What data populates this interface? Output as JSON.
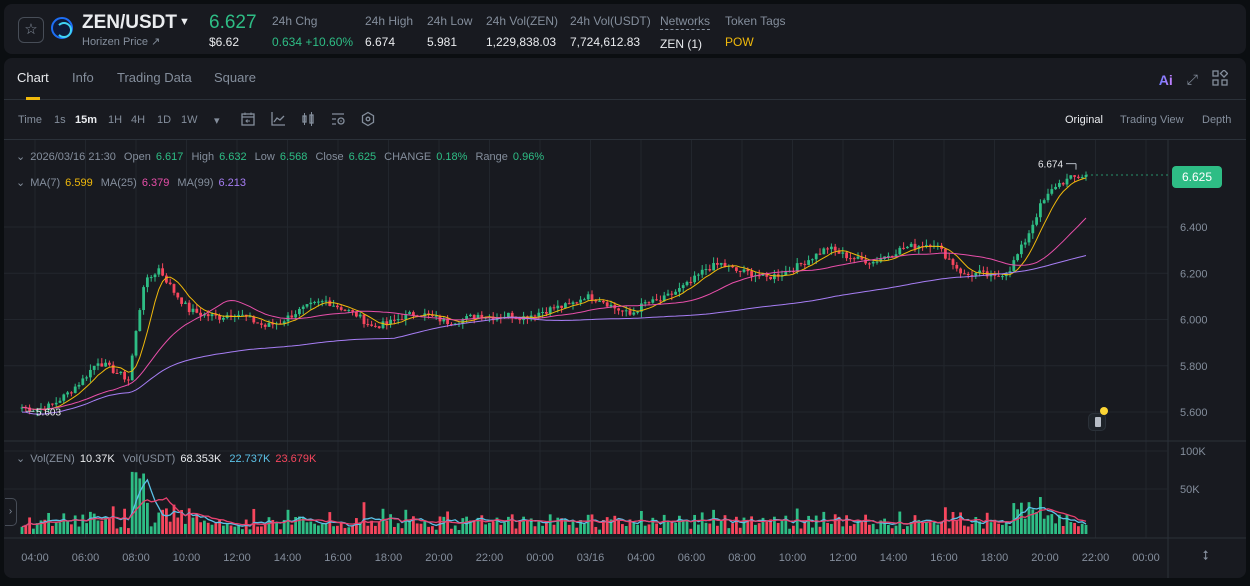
{
  "header": {
    "symbol": "ZEN/USDT",
    "subtitle": "Horizen Price ↗",
    "last_price": "6.627",
    "last_price_usd": "$6.62",
    "stats": [
      {
        "label": "24h Chg",
        "value": "0.634 +10.60%",
        "color": "green"
      },
      {
        "label": "24h High",
        "value": "6.674"
      },
      {
        "label": "24h Low",
        "value": "5.981"
      },
      {
        "label": "24h Vol(ZEN)",
        "value": "1,229,838.03"
      },
      {
        "label": "24h Vol(USDT)",
        "value": "7,724,612.83"
      },
      {
        "label": "Networks",
        "value": "ZEN (1)",
        "dashed": true
      },
      {
        "label": "Token Tags",
        "value": "POW",
        "color": "yellow"
      }
    ]
  },
  "tabs": [
    "Chart",
    "Info",
    "Trading Data",
    "Square"
  ],
  "active_tab": "Chart",
  "top_icons": {
    "ai": "Ai",
    "expand": "expand-icon",
    "layout": "layout-icon"
  },
  "toolbar": {
    "time_label": "Time",
    "intervals": [
      "1s",
      "15m",
      "1H",
      "4H",
      "1D",
      "1W"
    ],
    "active_interval": "15m",
    "more_caret": "▾",
    "tools": [
      "calendar-icon",
      "indicator-icon",
      "candle-type-icon",
      "chart-settings-icon",
      "hexagon-settings-icon"
    ],
    "views": [
      "Original",
      "Trading View",
      "Depth"
    ],
    "active_view": "Original"
  },
  "ohlc_legend": {
    "datetime": "2026/03/16 21:30",
    "open_label": "Open",
    "open": "6.617",
    "high_label": "High",
    "high": "6.632",
    "low_label": "Low",
    "low": "6.568",
    "close_label": "Close",
    "close": "6.625",
    "change_label": "CHANGE",
    "change": "0.18%",
    "range_label": "Range",
    "range": "0.96%"
  },
  "ma_legend": {
    "ma7_label": "MA(7)",
    "ma7": "6.599",
    "ma25_label": "MA(25)",
    "ma25": "6.379",
    "ma99_label": "MA(99)",
    "ma99": "6.213"
  },
  "vol_legend": {
    "zen_label": "Vol(ZEN)",
    "zen": "10.37K",
    "usdt_label": "Vol(USDT)",
    "usdt": "68.353K",
    "ma5": "22.737K",
    "ma10": "23.679K"
  },
  "last_badge": "6.625",
  "colors": {
    "up": "#2ebd85",
    "down": "#f6465d",
    "ma7": "#f0b90b",
    "ma25": "#e84faa",
    "ma99": "#a77ef5",
    "vol_ma5": "#5bc2e7",
    "vol_ma10": "#e8416f"
  },
  "chart_data": {
    "type": "candlestick",
    "title": "ZEN/USDT 15m",
    "interval": "15m",
    "y_axis": {
      "ticks": [
        "6.400",
        "6.200",
        "6.000",
        "5.800",
        "5.600"
      ],
      "range": [
        5.55,
        6.72
      ]
    },
    "volume_axis": {
      "ticks": [
        "100K",
        "50K"
      ]
    },
    "x_axis": {
      "ticks": [
        "04:00",
        "06:00",
        "08:00",
        "10:00",
        "12:00",
        "14:00",
        "16:00",
        "18:00",
        "20:00",
        "22:00",
        "00:00",
        "03/16",
        "04:00",
        "06:00",
        "08:00",
        "10:00",
        "12:00",
        "14:00",
        "16:00",
        "18:00",
        "20:00",
        "22:00",
        "00:00"
      ]
    },
    "annotations": [
      {
        "label": "6.674",
        "type": "high_marker"
      },
      {
        "label": "5.603",
        "type": "low_marker"
      }
    ],
    "close_series_hourly": [
      5.62,
      5.61,
      5.63,
      5.68,
      5.74,
      5.82,
      5.78,
      5.74,
      6.15,
      6.22,
      6.12,
      6.04,
      6.02,
      6.01,
      6.03,
      6.0,
      5.97,
      5.99,
      6.03,
      6.06,
      6.08,
      6.05,
      6.02,
      5.97,
      5.98,
      6.01,
      6.03,
      6.01,
      5.99,
      6.0,
      6.02,
      6.01,
      6.02,
      6.01,
      6.03,
      6.05,
      6.06,
      6.1,
      6.09,
      6.05,
      6.02,
      6.07,
      6.08,
      6.12,
      6.16,
      6.22,
      6.24,
      6.21,
      6.2,
      6.18,
      6.2,
      6.23,
      6.27,
      6.31,
      6.28,
      6.26,
      6.25,
      6.28,
      6.31,
      6.32,
      6.33,
      6.26,
      6.19,
      6.2,
      6.18,
      6.22,
      6.34,
      6.49,
      6.58,
      6.61,
      6.625
    ],
    "ma7_last": 6.599,
    "ma25_last": 6.379,
    "ma99_last": 6.213
  }
}
